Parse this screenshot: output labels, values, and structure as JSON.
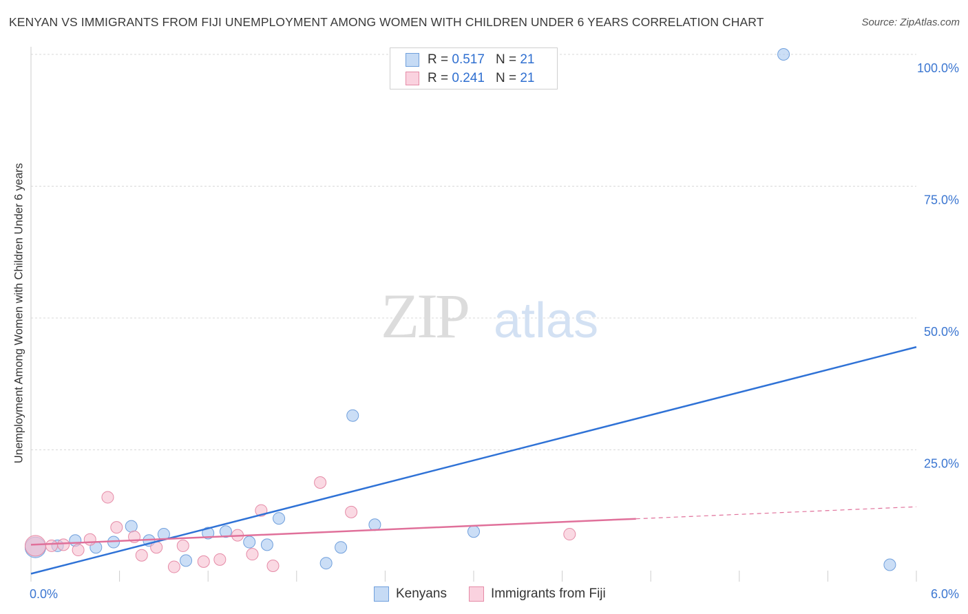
{
  "chart_data": {
    "type": "scatter",
    "title": "KENYAN VS IMMIGRANTS FROM FIJI UNEMPLOYMENT AMONG WOMEN WITH CHILDREN UNDER 6 YEARS CORRELATION CHART",
    "source": "Source: ZipAtlas.com",
    "watermark": {
      "zip": "ZIP",
      "atlas": "atlas"
    },
    "ylabel": "Unemployment Among Women with Children Under 6 years",
    "xlabel": "",
    "xlim": [
      0,
      6
    ],
    "ylim": [
      0,
      100
    ],
    "x_tick_labels": [
      "0.0%",
      "6.0%"
    ],
    "y_ticks": [
      25,
      50,
      75,
      100
    ],
    "y_tick_labels": [
      "25.0%",
      "50.0%",
      "75.0%",
      "100.0%"
    ],
    "grid": true,
    "legend_stats": [
      {
        "r_label": "R =",
        "r": "0.517",
        "n_label": "N =",
        "n": "21",
        "color": "#a9c8f0",
        "edge": "#6f9fdc"
      },
      {
        "r_label": "R =",
        "r": "0.241",
        "n_label": "N =",
        "n": "21",
        "color": "#f7bfd0",
        "edge": "#e58aa6"
      }
    ],
    "series": [
      {
        "name": "Kenyans",
        "color": "#a9c8f0",
        "edge": "#6f9fdc",
        "line_color": "#2f72d6",
        "trend": {
          "x0": 0.0,
          "y0": 1.5,
          "x1": 6.0,
          "y1": 44.5,
          "solid_until": 6.0
        },
        "points": [
          [
            0.03,
            6.5
          ],
          [
            0.18,
            6.8
          ],
          [
            0.3,
            7.8
          ],
          [
            0.44,
            6.5
          ],
          [
            0.56,
            7.5
          ],
          [
            0.68,
            10.5
          ],
          [
            0.8,
            7.8
          ],
          [
            0.9,
            9.0
          ],
          [
            1.05,
            4.0
          ],
          [
            1.2,
            9.2
          ],
          [
            1.32,
            9.5
          ],
          [
            1.48,
            7.5
          ],
          [
            1.6,
            7.0
          ],
          [
            1.68,
            12.0
          ],
          [
            2.0,
            3.5
          ],
          [
            2.1,
            6.5
          ],
          [
            2.18,
            31.5
          ],
          [
            2.33,
            10.8
          ],
          [
            3.0,
            9.5
          ],
          [
            5.1,
            100.0
          ],
          [
            5.82,
            3.2
          ]
        ]
      },
      {
        "name": "Immigrants from Fiji",
        "color": "#f7bfd0",
        "edge": "#e58aa6",
        "line_color": "#e0709a",
        "trend": {
          "x0": 0.0,
          "y0": 7.0,
          "x1": 6.0,
          "y1": 14.2,
          "solid_until": 4.1
        },
        "points": [
          [
            0.03,
            6.8
          ],
          [
            0.22,
            7.0
          ],
          [
            0.32,
            6.0
          ],
          [
            0.4,
            8.0
          ],
          [
            0.52,
            16.0
          ],
          [
            0.58,
            10.3
          ],
          [
            0.7,
            8.5
          ],
          [
            0.75,
            5.0
          ],
          [
            0.85,
            6.5
          ],
          [
            0.97,
            2.8
          ],
          [
            1.03,
            6.8
          ],
          [
            1.17,
            3.8
          ],
          [
            1.28,
            4.2
          ],
          [
            1.4,
            8.8
          ],
          [
            1.5,
            5.2
          ],
          [
            1.56,
            13.5
          ],
          [
            1.64,
            3.0
          ],
          [
            1.96,
            18.8
          ],
          [
            2.17,
            13.2
          ],
          [
            3.65,
            9.0
          ],
          [
            0.14,
            6.8
          ]
        ]
      }
    ]
  }
}
